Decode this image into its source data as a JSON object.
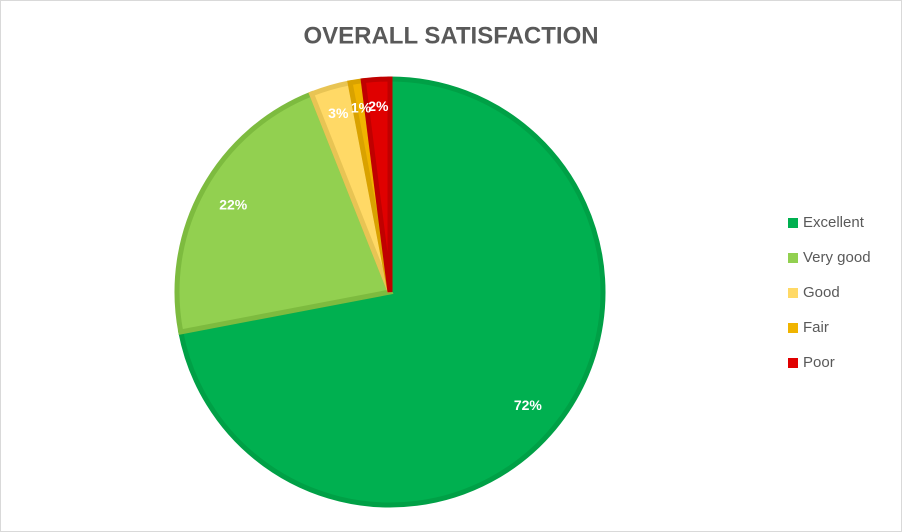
{
  "chart_data": {
    "type": "pie",
    "title": "OVERALL SATISFACTION",
    "categories": [
      "Excellent",
      "Very good",
      "Good",
      "Fair",
      "Poor"
    ],
    "values": [
      72,
      22,
      3,
      1,
      2
    ],
    "value_labels": [
      "72%",
      "22%",
      "3%",
      "1%",
      "2%"
    ],
    "colors": [
      "#00b050",
      "#92d050",
      "#ffd966",
      "#f0b400",
      "#e00000"
    ],
    "edge_colors": [
      "#00a046",
      "#7dbb3f",
      "#e8c454",
      "#d9a200",
      "#c00000"
    ],
    "legend": "right"
  }
}
